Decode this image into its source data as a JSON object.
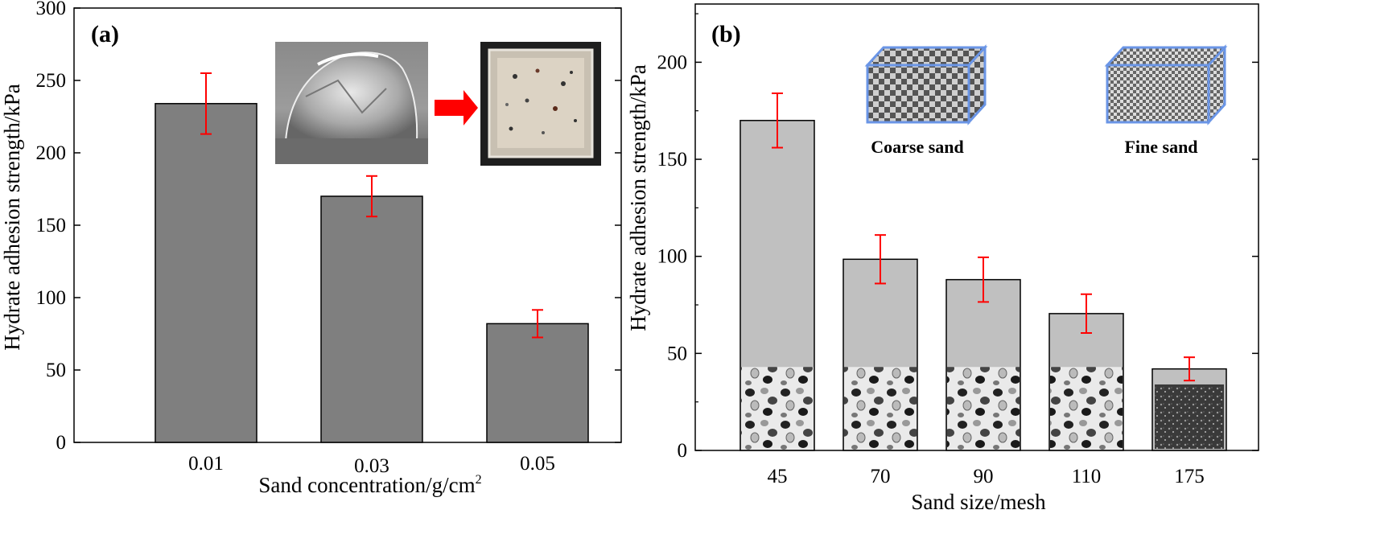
{
  "colors": {
    "bar_a": "#7f7f7f",
    "bar_b": "#c0c0c0",
    "error_bar": "#ff0000",
    "arrow": "#ff0000",
    "cube_edge": "#6a95e6"
  },
  "chart_data": [
    {
      "type": "bar",
      "panel_label": "(a)",
      "categories": [
        "0.01",
        "0.03",
        "0.05"
      ],
      "values": [
        234,
        170,
        82
      ],
      "errors": [
        21,
        14,
        9.5
      ],
      "xlabel": "Sand concentration/g/cm",
      "xlabel_sup": "2",
      "ylabel": "Hydrate adhesion strength/kPa",
      "ylim": [
        0,
        300
      ],
      "yticks": [
        "0",
        "50",
        "100",
        "150",
        "200",
        "250",
        "300"
      ],
      "grid": false,
      "insets": [
        "photo-hydrate-mound",
        "red-arrow",
        "photo-sand-sample-square"
      ]
    },
    {
      "type": "bar",
      "panel_label": "(b)",
      "categories": [
        "45",
        "70",
        "90",
        "110",
        "175"
      ],
      "values": [
        170,
        98.5,
        88,
        70.5,
        42
      ],
      "errors": [
        14,
        12.5,
        11.5,
        10,
        6
      ],
      "xlabel": "Sand size/mesh",
      "ylabel": "Hydrate adhesion strength/kPa",
      "ylim": [
        0,
        230
      ],
      "yticks": [
        "0",
        "50",
        "100",
        "150",
        "200"
      ],
      "grid": false,
      "insets": [
        {
          "label": "Coarse sand",
          "icon": "coarse-sand-cube-icon"
        },
        {
          "label": "Fine sand",
          "icon": "fine-sand-cube-icon"
        }
      ]
    }
  ]
}
